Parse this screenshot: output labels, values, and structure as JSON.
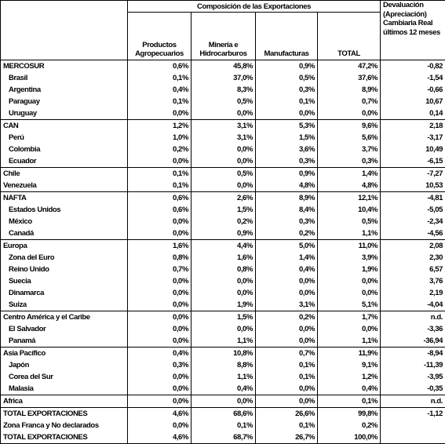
{
  "header": {
    "group_title": "Composición de las Exportaciones",
    "columns": [
      "Productos Agropecuarios",
      "Minería e Hidrocarburos",
      "Manufacturas",
      "TOTAL"
    ],
    "devaluation": "Devaluación (Apreciación) Cambiaria Real últimos 12 meses"
  },
  "rows": [
    [
      "MERCOSUR",
      "0,6%",
      "45,8%",
      "0,9%",
      "47,2%",
      "-0,82"
    ],
    [
      "Brasil",
      "0,1%",
      "37,0%",
      "0,5%",
      "37,6%",
      "-1,54"
    ],
    [
      "Argentina",
      "0,4%",
      "8,3%",
      "0,3%",
      "8,9%",
      "-0,66"
    ],
    [
      "Paraguay",
      "0,1%",
      "0,5%",
      "0,1%",
      "0,7%",
      "10,67"
    ],
    [
      "Uruguay",
      "0,0%",
      "0,0%",
      "0,0%",
      "0,0%",
      "0,14"
    ],
    [
      "CAN",
      "1,2%",
      "3,1%",
      "5,3%",
      "9,6%",
      "2,18"
    ],
    [
      "Perú",
      "1,0%",
      "3,1%",
      "1,5%",
      "5,6%",
      "-3,17"
    ],
    [
      "Colombia",
      "0,2%",
      "0,0%",
      "3,6%",
      "3,7%",
      "10,49"
    ],
    [
      "Ecuador",
      "0,0%",
      "0,0%",
      "0,3%",
      "0,3%",
      "-6,15"
    ],
    [
      "Chile",
      "0,1%",
      "0,5%",
      "0,9%",
      "1,4%",
      "-7,27"
    ],
    [
      "Venezuela",
      "0,1%",
      "0,0%",
      "4,8%",
      "4,8%",
      "10,53"
    ],
    [
      "NAFTA",
      "0,6%",
      "2,6%",
      "8,9%",
      "12,1%",
      "-4,81"
    ],
    [
      "Estados Unidos",
      "0,6%",
      "1,5%",
      "8,4%",
      "10,4%",
      "-5,05"
    ],
    [
      "México",
      "0,0%",
      "0,2%",
      "0,3%",
      "0,5%",
      "-2,34"
    ],
    [
      "Canadá",
      "0,0%",
      "0,9%",
      "0,2%",
      "1,1%",
      "-4,56"
    ],
    [
      "Europa",
      "1,6%",
      "4,4%",
      "5,0%",
      "11,0%",
      "2,08"
    ],
    [
      "Zona del Euro",
      "0,8%",
      "1,6%",
      "1,4%",
      "3,9%",
      "2,30"
    ],
    [
      "Reino Unido",
      "0,7%",
      "0,8%",
      "0,4%",
      "1,9%",
      "6,57"
    ],
    [
      "Suecia",
      "0,0%",
      "0,0%",
      "0,0%",
      "0,0%",
      "3,76"
    ],
    [
      "Dinamarca",
      "0,0%",
      "0,0%",
      "0,0%",
      "0,0%",
      "2,19"
    ],
    [
      "Suiza",
      "0,0%",
      "1,9%",
      "3,1%",
      "5,1%",
      "-4,04"
    ],
    [
      "Centro América y el Caribe",
      "0,0%",
      "1,5%",
      "0,2%",
      "1,7%",
      "n.d."
    ],
    [
      "El Salvador",
      "0,0%",
      "0,0%",
      "0,0%",
      "0,0%",
      "-3,36"
    ],
    [
      "Panamá",
      "0,0%",
      "1,1%",
      "0,0%",
      "1,1%",
      "-36,94"
    ],
    [
      "Asia Pacífico",
      "0,4%",
      "10,8%",
      "0,7%",
      "11,9%",
      "-8,94"
    ],
    [
      "Japón",
      "0,3%",
      "8,8%",
      "0,1%",
      "9,1%",
      "-11,39"
    ],
    [
      "Corea del Sur",
      "0,0%",
      "1,1%",
      "0,1%",
      "1,2%",
      "-3,95"
    ],
    [
      "Malasia",
      "0,0%",
      "0,4%",
      "0,0%",
      "0,4%",
      "-0,35"
    ],
    [
      "Africa",
      "0,0%",
      "0,0%",
      "0,0%",
      "0,1%",
      "n.d."
    ],
    [
      "TOTAL EXPORTACIONES",
      "4,6%",
      "68,6%",
      "26,6%",
      "99,8%",
      "-1,12"
    ],
    [
      "Zona Franca y No declarados",
      "0,0%",
      "0,1%",
      "0,1%",
      "0,2%"
    ],
    [
      "TOTAL EXPORTACIONES",
      "4,6%",
      "68,7%",
      "26,7%",
      "100,0%"
    ]
  ]
}
